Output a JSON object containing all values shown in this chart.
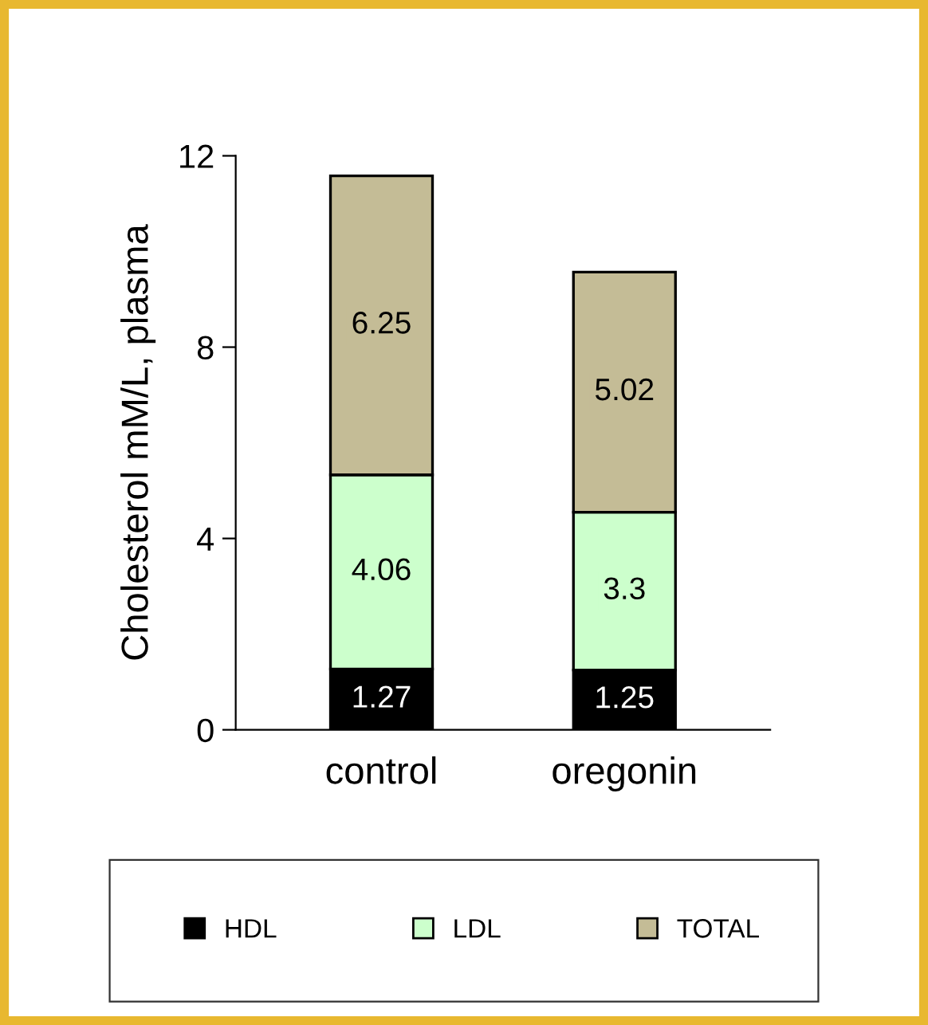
{
  "chart_data": {
    "type": "bar",
    "stacked": true,
    "categories": [
      "control",
      "oregonin"
    ],
    "ylabel": "Cholesterol mM/L, plasma",
    "ylim": [
      0,
      12
    ],
    "yticks": [
      0,
      4,
      8,
      12
    ],
    "grid": false,
    "legend": "bottom",
    "data_labels": true,
    "series": [
      {
        "name": "HDL",
        "color": "#000000",
        "values": [
          1.27,
          1.25
        ]
      },
      {
        "name": "LDL",
        "color": "#ccffcc",
        "values": [
          4.06,
          3.3
        ]
      },
      {
        "name": "TOTAL",
        "color": "#c4bc96",
        "values": [
          6.25,
          5.02
        ]
      }
    ]
  }
}
